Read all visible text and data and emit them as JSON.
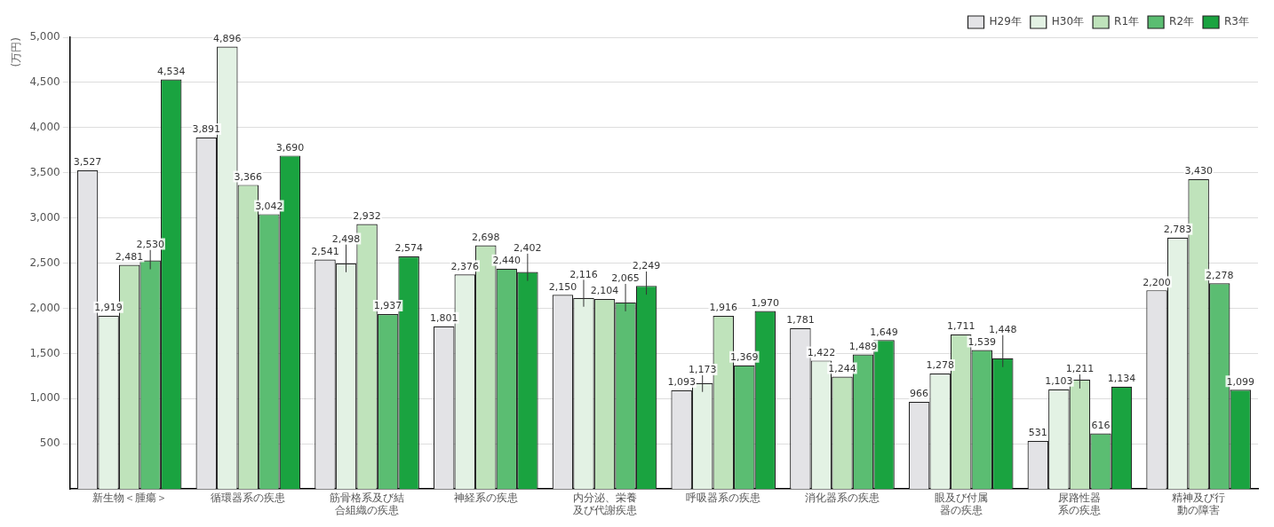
{
  "chart_data": {
    "type": "bar",
    "ylabel": "(万円)",
    "categories": [
      "新生物＜腫瘍＞",
      "循環器系の疾患",
      "筋骨格系及び結合組織の疾患",
      "神経系の疾患",
      "内分泌、栄養及び代謝疾患",
      "呼吸器系の疾患",
      "消化器系の疾患",
      "眼及び付属器の疾患",
      "尿路性器系の疾患",
      "精神及び行動の障害"
    ],
    "series": [
      {
        "name": "H29年",
        "color": "#e3e3e6",
        "values": [
          3527,
          3891,
          2541,
          1801,
          2150,
          1093,
          1781,
          966,
          531,
          2200
        ],
        "value_labels": [
          "3,527",
          "3,891",
          "2,541",
          "1,801",
          "2,150",
          "1,093",
          "1,781",
          "966",
          "531",
          "2,200"
        ]
      },
      {
        "name": "H30年",
        "color": "#e3f2e4",
        "values": [
          1919,
          4896,
          2498,
          2376,
          2116,
          1173,
          1422,
          1278,
          1103,
          2783
        ],
        "value_labels": [
          "1,919",
          "4,896",
          "2,498",
          "2,376",
          "2,116",
          "1,173",
          "1,422",
          "1,278",
          "1,103",
          "2,783"
        ]
      },
      {
        "name": "R1年",
        "color": "#bfe3bb",
        "values": [
          2481,
          3366,
          2932,
          2698,
          2104,
          1916,
          1244,
          1711,
          1211,
          3430
        ],
        "value_labels": [
          "2,481",
          "3,366",
          "2,932",
          "2,698",
          "2,104",
          "1,916",
          "1,244",
          "1,711",
          "1,211",
          "3,430"
        ]
      },
      {
        "name": "R2年",
        "color": "#5bbd72",
        "values": [
          2530,
          3042,
          1937,
          2440,
          2065,
          1369,
          1489,
          1539,
          616,
          2278
        ],
        "value_labels": [
          "2,530",
          "3,042",
          "1,937",
          "2,440",
          "2,065",
          "1,369",
          "1,489",
          "1,539",
          "616",
          "2,278"
        ]
      },
      {
        "name": "R3年",
        "color": "#1aa340",
        "values": [
          4534,
          3690,
          2574,
          2402,
          2249,
          1970,
          1649,
          1448,
          1134,
          1099
        ],
        "value_labels": [
          "4,534",
          "3,690",
          "2,574",
          "2,402",
          "2,249",
          "1,970",
          "1,649",
          "1,448",
          "1,134",
          "1,099"
        ]
      }
    ],
    "ylim": [
      0,
      5000
    ],
    "yticks": [
      {
        "value": 500,
        "label": "500"
      },
      {
        "value": 1000,
        "label": "1,000"
      },
      {
        "value": 1500,
        "label": "1,500"
      },
      {
        "value": 2000,
        "label": "2,000"
      },
      {
        "value": 2500,
        "label": "2,500"
      },
      {
        "value": 3000,
        "label": "3,000"
      },
      {
        "value": 3500,
        "label": "3,500"
      },
      {
        "value": 4000,
        "label": "4,000"
      },
      {
        "value": 4500,
        "label": "4,500"
      },
      {
        "value": 5000,
        "label": "5,000"
      }
    ],
    "grid": "y",
    "legend": "top right"
  }
}
